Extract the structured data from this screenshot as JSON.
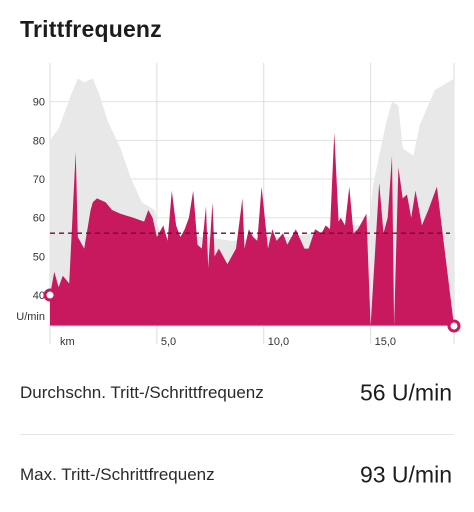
{
  "header": {
    "title": "Trittfrequenz"
  },
  "stats": [
    {
      "label": "Durchschn. Tritt-/Schrittfrequenz",
      "value": "56 U/min"
    },
    {
      "label": "Max. Tritt-/Schrittfrequenz",
      "value": "93 U/min"
    }
  ],
  "colors": {
    "cadence": "#c8185e",
    "elevation": "#e8e8e8",
    "average_line": "#6a0c30"
  },
  "chart_data": {
    "type": "area",
    "y_unit_label": "U/min",
    "x_unit_label": "km",
    "xlim": [
      0,
      18.9
    ],
    "ylim": [
      32,
      100
    ],
    "y_ticks": [
      40,
      50,
      60,
      70,
      80,
      90
    ],
    "y_tick_labels": [
      "40",
      "50",
      "60",
      "70",
      "80",
      "90"
    ],
    "x_ticks": [
      5,
      10,
      15
    ],
    "x_tick_labels": [
      "5,0",
      "10,0",
      "15,0"
    ],
    "grid": true,
    "average": 56,
    "start_marker_value": 40,
    "end_marker_value": 32,
    "series": [
      {
        "x": [
          0,
          0.2,
          0.4,
          0.6,
          0.9,
          1.2,
          1.3,
          1.6,
          1.9,
          2.0,
          2.2,
          2.6,
          2.9,
          3.3,
          3.9,
          4.4,
          4.6,
          4.8,
          5.0,
          5.3,
          5.5,
          5.7,
          5.9,
          6.1,
          6.3,
          6.5,
          6.7,
          6.9,
          7.1,
          7.3,
          7.4,
          7.6,
          7.7,
          7.9,
          8.1,
          8.3,
          8.5,
          8.7,
          9.0,
          9.1,
          9.3,
          9.5,
          9.7,
          9.9,
          10.2,
          10.4,
          10.6,
          10.9,
          11.1,
          11.3,
          11.5,
          11.9,
          12.1,
          12.4,
          12.7,
          12.9,
          13.1,
          13.3,
          13.5,
          13.6,
          13.8,
          14.0,
          14.2,
          14.4,
          14.6,
          14.8,
          15.0,
          15.4,
          15.6,
          15.8,
          16.0,
          16.1,
          16.3,
          16.5,
          16.7,
          16.9,
          17.1,
          17.4,
          17.7,
          18.1,
          18.9
        ],
        "values": [
          40,
          46,
          42,
          45,
          43,
          77,
          55,
          52,
          62,
          64,
          65,
          64,
          62,
          61,
          60,
          59,
          62,
          60,
          55,
          58,
          54,
          67,
          58,
          55,
          57,
          60,
          67,
          53,
          52,
          63,
          47,
          64,
          50,
          52,
          50,
          48,
          50,
          52,
          65,
          52,
          57,
          55,
          54,
          68,
          52,
          57,
          54,
          56,
          53,
          55,
          57,
          52,
          52,
          57,
          56,
          58,
          57,
          82,
          59,
          60,
          58,
          68,
          56,
          57,
          59,
          61,
          32,
          69,
          56,
          60,
          76,
          32,
          73,
          65,
          66,
          60,
          67,
          58,
          62,
          68,
          32
        ]
      },
      {
        "name": "",
        "x": [
          0,
          0.4,
          1.0,
          1.3,
          1.6,
          2.0,
          2.3,
          2.7,
          3.3,
          3.8,
          4.3,
          4.9,
          5.1,
          5.4,
          5.8,
          6.0,
          6.2,
          6.6,
          7.3,
          8.5,
          10.0,
          11.2,
          12.4,
          13.6,
          14.4,
          14.8,
          15.0,
          15.1,
          15.4,
          15.7,
          16.0,
          16.3,
          16.5,
          17.0,
          17.3,
          18.0,
          18.9
        ],
        "values": [
          80,
          83,
          92,
          96,
          95,
          96,
          92,
          85,
          78,
          70,
          64,
          62,
          57,
          55,
          54,
          54,
          54,
          55,
          55,
          54,
          55,
          55,
          56,
          58,
          58,
          58,
          61,
          68,
          76,
          84,
          90,
          89,
          78,
          76,
          84,
          93,
          96
        ]
      }
    ]
  }
}
